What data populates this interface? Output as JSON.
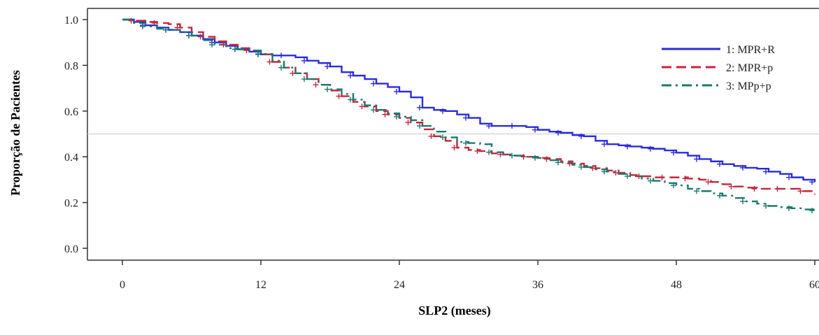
{
  "chart_data": {
    "type": "line",
    "title": "",
    "xlabel": "SLP2 (meses)",
    "ylabel": "Proporção de Pacientes",
    "xlim": [
      0,
      60
    ],
    "ylim": [
      0,
      1
    ],
    "x_ticks": [
      "0",
      "12",
      "24",
      "36",
      "48",
      "60"
    ],
    "y_ticks": [
      "0.0",
      "0.2",
      "0.4",
      "0.6",
      "0.8",
      "1.0"
    ],
    "reference_line_y": 0.5,
    "legend_position": "top-right",
    "series": [
      {
        "name": "1: MPR+R",
        "color": "#2b2bdb",
        "dash": "solid",
        "points": [
          [
            0,
            1.0
          ],
          [
            1,
            0.99
          ],
          [
            2,
            0.975
          ],
          [
            3,
            0.965
          ],
          [
            4,
            0.955
          ],
          [
            5,
            0.945
          ],
          [
            6,
            0.93
          ],
          [
            7,
            0.915
          ],
          [
            8,
            0.9
          ],
          [
            9,
            0.885
          ],
          [
            10,
            0.87
          ],
          [
            11,
            0.86
          ],
          [
            12,
            0.848
          ],
          [
            13,
            0.843
          ],
          [
            14,
            0.843
          ],
          [
            15,
            0.835
          ],
          [
            16,
            0.82
          ],
          [
            17,
            0.81
          ],
          [
            18,
            0.795
          ],
          [
            19,
            0.77
          ],
          [
            20,
            0.755
          ],
          [
            21,
            0.74
          ],
          [
            22,
            0.72
          ],
          [
            23,
            0.705
          ],
          [
            24,
            0.685
          ],
          [
            25,
            0.66
          ],
          [
            26,
            0.615
          ],
          [
            27,
            0.605
          ],
          [
            28,
            0.6
          ],
          [
            29,
            0.585
          ],
          [
            30,
            0.57
          ],
          [
            31,
            0.545
          ],
          [
            32,
            0.535
          ],
          [
            33,
            0.535
          ],
          [
            34,
            0.535
          ],
          [
            35,
            0.53
          ],
          [
            36,
            0.518
          ],
          [
            37,
            0.51
          ],
          [
            38,
            0.505
          ],
          [
            39,
            0.495
          ],
          [
            40,
            0.49
          ],
          [
            41,
            0.47
          ],
          [
            42,
            0.455
          ],
          [
            43,
            0.45
          ],
          [
            44,
            0.445
          ],
          [
            45,
            0.44
          ],
          [
            46,
            0.435
          ],
          [
            47,
            0.428
          ],
          [
            48,
            0.418
          ],
          [
            49,
            0.405
          ],
          [
            50,
            0.39
          ],
          [
            51,
            0.38
          ],
          [
            52,
            0.368
          ],
          [
            53,
            0.36
          ],
          [
            54,
            0.352
          ],
          [
            55,
            0.348
          ],
          [
            56,
            0.335
          ],
          [
            57,
            0.325
          ],
          [
            58,
            0.31
          ],
          [
            59,
            0.3
          ],
          [
            60,
            0.29
          ]
        ]
      },
      {
        "name": "2: MPR+p",
        "color": "#c8243c",
        "dash": "dashed",
        "points": [
          [
            0,
            1.0
          ],
          [
            1,
            0.995
          ],
          [
            2,
            0.99
          ],
          [
            3,
            0.985
          ],
          [
            4,
            0.98
          ],
          [
            5,
            0.965
          ],
          [
            6,
            0.945
          ],
          [
            7,
            0.925
          ],
          [
            8,
            0.905
          ],
          [
            9,
            0.89
          ],
          [
            10,
            0.875
          ],
          [
            11,
            0.865
          ],
          [
            12,
            0.848
          ],
          [
            13,
            0.815
          ],
          [
            14,
            0.79
          ],
          [
            15,
            0.765
          ],
          [
            16,
            0.74
          ],
          [
            17,
            0.715
          ],
          [
            18,
            0.69
          ],
          [
            19,
            0.665
          ],
          [
            20,
            0.64
          ],
          [
            21,
            0.62
          ],
          [
            22,
            0.6
          ],
          [
            23,
            0.585
          ],
          [
            24,
            0.57
          ],
          [
            25,
            0.55
          ],
          [
            26,
            0.52
          ],
          [
            27,
            0.49
          ],
          [
            28,
            0.47
          ],
          [
            29,
            0.44
          ],
          [
            30,
            0.43
          ],
          [
            31,
            0.425
          ],
          [
            32,
            0.415
          ],
          [
            33,
            0.41
          ],
          [
            34,
            0.405
          ],
          [
            35,
            0.4
          ],
          [
            36,
            0.395
          ],
          [
            37,
            0.39
          ],
          [
            38,
            0.38
          ],
          [
            39,
            0.37
          ],
          [
            40,
            0.36
          ],
          [
            41,
            0.35
          ],
          [
            42,
            0.34
          ],
          [
            43,
            0.33
          ],
          [
            44,
            0.32
          ],
          [
            45,
            0.315
          ],
          [
            46,
            0.31
          ],
          [
            47,
            0.31
          ],
          [
            48,
            0.31
          ],
          [
            49,
            0.305
          ],
          [
            50,
            0.3
          ],
          [
            51,
            0.29
          ],
          [
            52,
            0.28
          ],
          [
            53,
            0.27
          ],
          [
            54,
            0.265
          ],
          [
            55,
            0.26
          ],
          [
            56,
            0.26
          ],
          [
            57,
            0.26
          ],
          [
            58,
            0.26
          ],
          [
            59,
            0.25
          ],
          [
            60,
            0.235
          ]
        ]
      },
      {
        "name": "3: MPp+p",
        "color": "#1a7a6e",
        "dash": "dashdot",
        "points": [
          [
            0,
            1.0
          ],
          [
            1,
            0.985
          ],
          [
            2,
            0.97
          ],
          [
            3,
            0.96
          ],
          [
            4,
            0.955
          ],
          [
            5,
            0.945
          ],
          [
            6,
            0.93
          ],
          [
            7,
            0.91
          ],
          [
            8,
            0.89
          ],
          [
            9,
            0.875
          ],
          [
            10,
            0.87
          ],
          [
            11,
            0.865
          ],
          [
            12,
            0.85
          ],
          [
            13,
            0.82
          ],
          [
            14,
            0.79
          ],
          [
            15,
            0.765
          ],
          [
            16,
            0.74
          ],
          [
            17,
            0.715
          ],
          [
            18,
            0.695
          ],
          [
            19,
            0.675
          ],
          [
            20,
            0.65
          ],
          [
            21,
            0.625
          ],
          [
            22,
            0.605
          ],
          [
            23,
            0.59
          ],
          [
            24,
            0.575
          ],
          [
            25,
            0.56
          ],
          [
            26,
            0.535
          ],
          [
            27,
            0.51
          ],
          [
            28,
            0.485
          ],
          [
            29,
            0.465
          ],
          [
            30,
            0.46
          ],
          [
            31,
            0.455
          ],
          [
            32,
            0.42
          ],
          [
            33,
            0.41
          ],
          [
            34,
            0.405
          ],
          [
            35,
            0.4
          ],
          [
            36,
            0.395
          ],
          [
            37,
            0.385
          ],
          [
            38,
            0.375
          ],
          [
            39,
            0.365
          ],
          [
            40,
            0.355
          ],
          [
            41,
            0.345
          ],
          [
            42,
            0.335
          ],
          [
            43,
            0.325
          ],
          [
            44,
            0.315
          ],
          [
            45,
            0.305
          ],
          [
            46,
            0.295
          ],
          [
            47,
            0.285
          ],
          [
            48,
            0.275
          ],
          [
            49,
            0.26
          ],
          [
            50,
            0.25
          ],
          [
            51,
            0.24
          ],
          [
            52,
            0.23
          ],
          [
            53,
            0.22
          ],
          [
            54,
            0.205
          ],
          [
            55,
            0.195
          ],
          [
            56,
            0.185
          ],
          [
            57,
            0.18
          ],
          [
            58,
            0.175
          ],
          [
            59,
            0.17
          ],
          [
            60,
            0.165
          ]
        ]
      }
    ]
  }
}
